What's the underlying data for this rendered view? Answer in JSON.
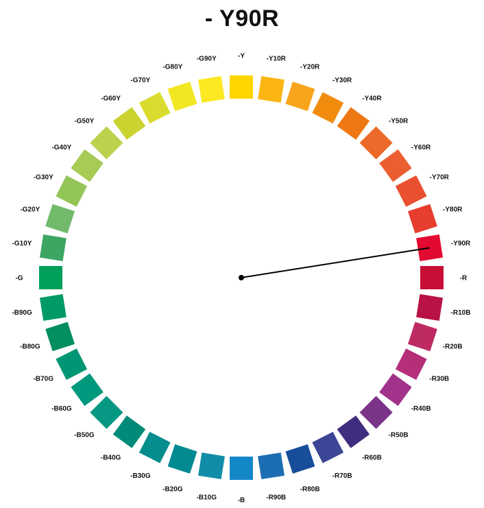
{
  "title": "- Y90R",
  "wheel": {
    "selected": "-Y90R",
    "hues": [
      {
        "label": "-Y",
        "color": "#FFD500"
      },
      {
        "label": "-Y10R",
        "color": "#FBB614"
      },
      {
        "label": "-Y20R",
        "color": "#F8A51B"
      },
      {
        "label": "-Y30R",
        "color": "#F28C0E"
      },
      {
        "label": "-Y40R",
        "color": "#EE7814"
      },
      {
        "label": "-Y50R",
        "color": "#EC6A29"
      },
      {
        "label": "-Y60R",
        "color": "#EA5E31"
      },
      {
        "label": "-Y70R",
        "color": "#E8502F"
      },
      {
        "label": "-Y80R",
        "color": "#E63D2F"
      },
      {
        "label": "-Y90R",
        "color": "#E30A32"
      },
      {
        "label": "-R",
        "color": "#C70E36"
      },
      {
        "label": "-R10B",
        "color": "#B81246"
      },
      {
        "label": "-R20B",
        "color": "#BE2A62"
      },
      {
        "label": "-R30B",
        "color": "#B42E78"
      },
      {
        "label": "-R40B",
        "color": "#A2338A"
      },
      {
        "label": "-R50B",
        "color": "#7A3488"
      },
      {
        "label": "-R60B",
        "color": "#412D80"
      },
      {
        "label": "-R70B",
        "color": "#3C4596"
      },
      {
        "label": "-R80B",
        "color": "#164E9A"
      },
      {
        "label": "-R90B",
        "color": "#1D6DB3"
      },
      {
        "label": "-B",
        "color": "#1487C8"
      },
      {
        "label": "-B10G",
        "color": "#128DA8"
      },
      {
        "label": "-B20G",
        "color": "#028A91"
      },
      {
        "label": "-B30G",
        "color": "#048D8C"
      },
      {
        "label": "-B40G",
        "color": "#008B78"
      },
      {
        "label": "-B50G",
        "color": "#079883"
      },
      {
        "label": "-B60G",
        "color": "#00997E"
      },
      {
        "label": "-B70G",
        "color": "#009674"
      },
      {
        "label": "-B80G",
        "color": "#068E63"
      },
      {
        "label": "-B90G",
        "color": "#009A67"
      },
      {
        "label": "-G",
        "color": "#00A05A"
      },
      {
        "label": "-G10Y",
        "color": "#3EA663"
      },
      {
        "label": "-G20Y",
        "color": "#72BA6C"
      },
      {
        "label": "-G30Y",
        "color": "#93C558"
      },
      {
        "label": "-G40Y",
        "color": "#A7CB55"
      },
      {
        "label": "-G50Y",
        "color": "#BCD24E"
      },
      {
        "label": "-G60Y",
        "color": "#CAD32F"
      },
      {
        "label": "-G70Y",
        "color": "#D9DC2E"
      },
      {
        "label": "-G80Y",
        "color": "#F1E723"
      },
      {
        "label": "-G90Y",
        "color": "#FCE921"
      }
    ]
  }
}
